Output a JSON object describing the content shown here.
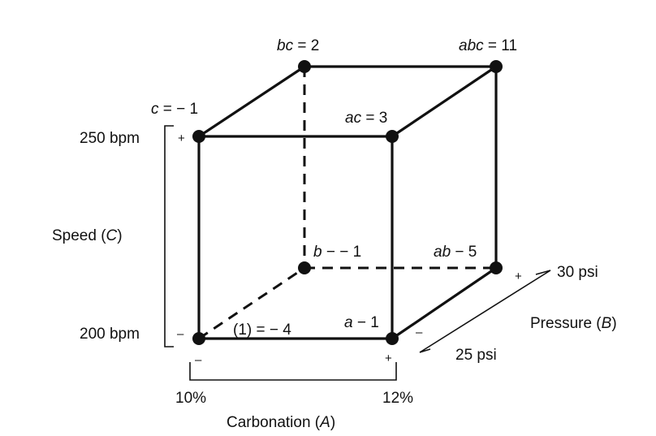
{
  "vertices": {
    "one": {
      "var": "(1)",
      "eq": " = − 4"
    },
    "a": {
      "var": "a",
      "eq": " − 1"
    },
    "b": {
      "var": "b",
      "eq": " − − 1"
    },
    "ab": {
      "var": "ab",
      "eq": " − 5"
    },
    "c": {
      "var": "c",
      "eq": " = − 1"
    },
    "ac": {
      "var": "ac",
      "eq": " = 3"
    },
    "bc": {
      "var": "bc",
      "eq": " = 2"
    },
    "abc": {
      "var": "abc",
      "eq": " = 11"
    }
  },
  "speed": {
    "name": "Speed (",
    "var": "C",
    "close": ")",
    "high": "250 bpm",
    "low": "200 bpm",
    "plus": "+",
    "minus": "–"
  },
  "carbonation": {
    "name": "Carbonation (",
    "var": "A",
    "close": ")",
    "low": "10%",
    "high": "12%",
    "plus": "+",
    "minus": "–"
  },
  "pressure": {
    "name": "Pressure (",
    "var": "B",
    "close": ")",
    "high": "30 psi",
    "low": "25 psi",
    "plus": "+",
    "minus": "–"
  }
}
